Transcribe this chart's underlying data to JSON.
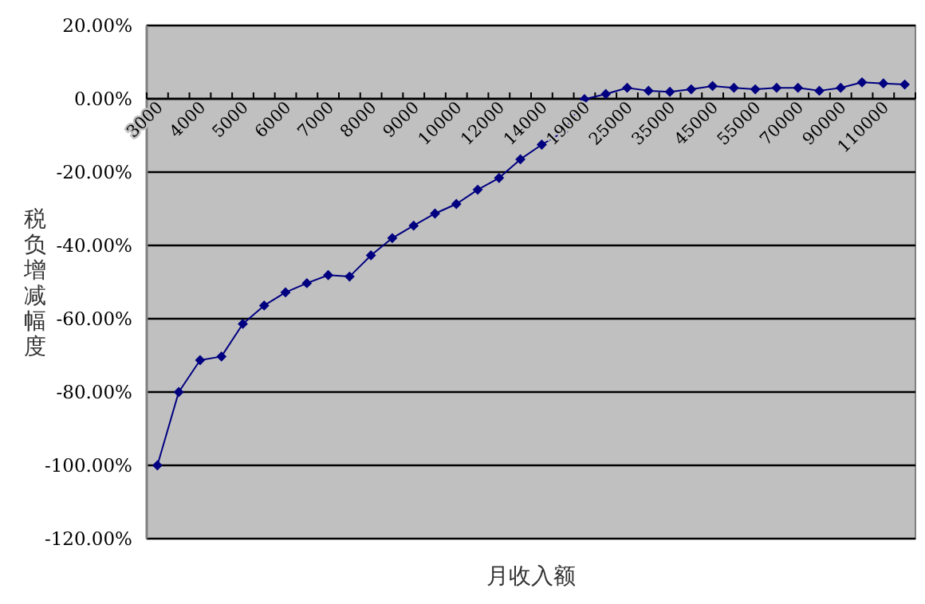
{
  "chart_data": {
    "type": "line",
    "xlabel": "月收入额",
    "ylabel": "税负增减幅度",
    "categories": [
      "3000",
      null,
      "4000",
      null,
      "5000",
      null,
      "6000",
      null,
      "7000",
      null,
      "8000",
      null,
      "9000",
      null,
      "10000",
      null,
      "12000",
      null,
      "14000",
      null,
      "19000",
      null,
      "25000",
      null,
      "35000",
      null,
      "45000",
      null,
      "55000",
      null,
      "70000",
      null,
      "90000",
      null,
      "110000",
      null
    ],
    "values": [
      -100,
      -80,
      -71.3,
      -70.3,
      -61.4,
      -56.4,
      -52.8,
      -50.3,
      -48.1,
      -48.5,
      -42.7,
      -38,
      -34.6,
      -31.3,
      -28.7,
      -24.8,
      -21.6,
      -16.5,
      -12.5,
      -9.1,
      -0.1,
      1.3,
      3.0,
      2.2,
      1.9,
      2.6,
      3.5,
      3.0,
      2.6,
      3.0,
      3.0,
      2.2,
      3.0,
      4.5,
      4.2,
      3.9
    ],
    "color": "#000080",
    "ylim": [
      -120,
      20
    ],
    "yticks": [
      {
        "value": 20,
        "label": "20.00%"
      },
      {
        "value": 0,
        "label": "0.00%"
      },
      {
        "value": -20,
        "label": "-20.00%"
      },
      {
        "value": -40,
        "label": "-40.00%"
      },
      {
        "value": -60,
        "label": "-60.00%"
      },
      {
        "value": -80,
        "label": "-80.00%"
      },
      {
        "value": -100,
        "label": "-100.00%"
      },
      {
        "value": -120,
        "label": "-120.00%"
      }
    ],
    "grid": "y",
    "marker": "diamond"
  }
}
